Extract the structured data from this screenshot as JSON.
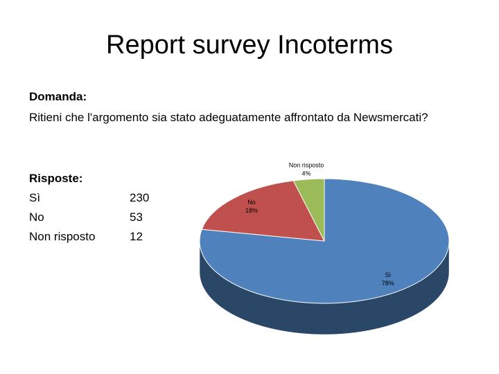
{
  "title": "Report survey Incoterms",
  "question": {
    "label": "Domanda:",
    "text": "Ritieni che l'argomento sia stato adeguatamente affrontato da Newsmercati?"
  },
  "answers": {
    "label": "Risposte:",
    "rows": [
      [
        "Sì",
        230
      ],
      [
        "No",
        53
      ],
      [
        "Non risposto",
        12
      ]
    ]
  },
  "chart_data": {
    "type": "pie",
    "categories": [
      "Sì",
      "No",
      "Non risposto"
    ],
    "values": [
      78,
      18,
      4
    ],
    "value_labels": [
      "78%",
      "18%",
      "4%"
    ],
    "colors": [
      "#4f81bd",
      "#c0504d",
      "#9bbb59"
    ]
  }
}
